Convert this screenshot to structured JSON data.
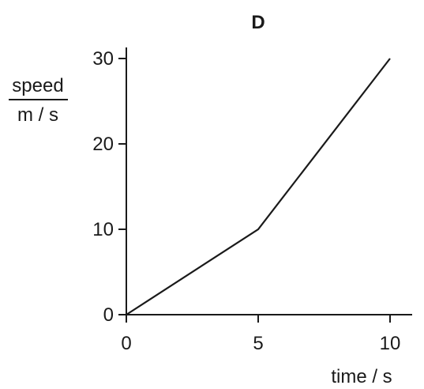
{
  "chart_data": {
    "type": "line",
    "title": "D",
    "xlabel": "time / s",
    "ylabel_top": "speed",
    "ylabel_bottom": "m / s",
    "x": [
      0,
      5,
      10
    ],
    "series": [
      {
        "values": [
          0,
          10,
          30
        ]
      }
    ],
    "xlim": [
      0,
      10
    ],
    "ylim": [
      0,
      30
    ],
    "xticks": [
      0,
      5,
      10
    ],
    "yticks": [
      0,
      10,
      20,
      30
    ],
    "xtick_labels": [
      "0",
      "5",
      "10"
    ],
    "ytick_labels": [
      "0",
      "10",
      "20",
      "30"
    ],
    "grid": false,
    "line_color": "#1a1a1a"
  }
}
